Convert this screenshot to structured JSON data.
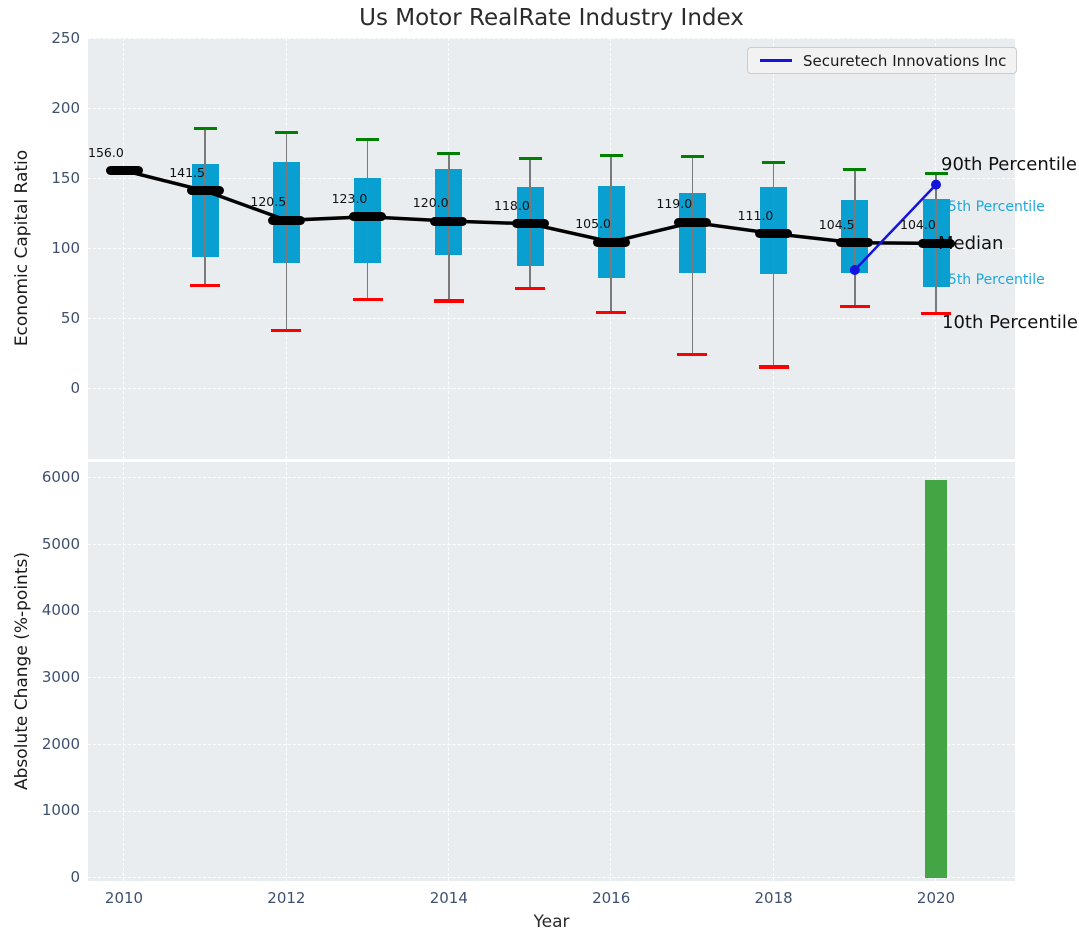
{
  "title": "Us Motor RealRate Industry Index",
  "legend": {
    "label": "Securetech Innovations Inc"
  },
  "right_labels": {
    "p90": "90th Percentile",
    "p75": "75th Percentile",
    "median": "Median",
    "p25": "25th Percentile",
    "p10": "10th Percentile"
  },
  "colors": {
    "box_fill": "#0a9fd1",
    "cap_high": "#008000",
    "cap_low": "#ff0000",
    "whisker": "#7a7a7a",
    "median_line": "#000000",
    "company_line": "#1414dd",
    "bar_fill": "#44a544",
    "cyan_label": "#1ea8dd",
    "plot_bg": "#e9edf0",
    "tick_text": "#3f516e"
  },
  "chart_data": [
    {
      "type": "box",
      "title": "Us Motor RealRate Industry Index",
      "ylabel": "Economic Capital Ratio",
      "xlabel": "Year",
      "x": [
        2010,
        2011,
        2012,
        2013,
        2014,
        2015,
        2016,
        2017,
        2018,
        2019,
        2020
      ],
      "median": [
        156.0,
        141.5,
        120.5,
        123.0,
        120.0,
        118.0,
        105.0,
        119.0,
        111.0,
        104.5,
        104.0
      ],
      "p90": [
        null,
        186,
        183,
        178,
        168,
        165,
        167,
        166,
        162,
        157,
        154
      ],
      "p75": [
        null,
        161,
        162,
        151,
        157,
        144,
        145,
        140,
        144,
        135,
        136
      ],
      "p25": [
        null,
        94,
        90,
        90,
        96,
        88,
        79,
        83,
        82,
        83,
        73
      ],
      "p10": [
        null,
        74,
        42,
        64,
        63,
        72,
        55,
        25,
        16,
        59,
        54
      ],
      "median_labels": [
        "156.0",
        "141.5",
        "120.5",
        "123.0",
        "120.0",
        "118.0",
        "105.0",
        "119.0",
        "111.0",
        "104.5",
        "104.0"
      ],
      "series": [
        {
          "name": "Securetech Innovations Inc",
          "x": [
            2019,
            2020
          ],
          "y": [
            85,
            146
          ]
        }
      ],
      "yticks": [
        0,
        50,
        100,
        150,
        200,
        250
      ],
      "xticks": [
        2010,
        2012,
        2014,
        2016,
        2018,
        2020
      ],
      "ylim": [
        -47,
        251
      ],
      "grid": true,
      "legend_position": "upper right"
    },
    {
      "type": "bar",
      "ylabel": "Absolute Change (%-points)",
      "xlabel": "Year",
      "categories": [
        2020
      ],
      "values": [
        5970
      ],
      "yticks": [
        0,
        1000,
        2000,
        3000,
        4000,
        5000,
        6000
      ],
      "xticks": [
        2010,
        2012,
        2014,
        2016,
        2018,
        2020
      ],
      "ylim": [
        0,
        6285
      ],
      "grid": true
    }
  ]
}
